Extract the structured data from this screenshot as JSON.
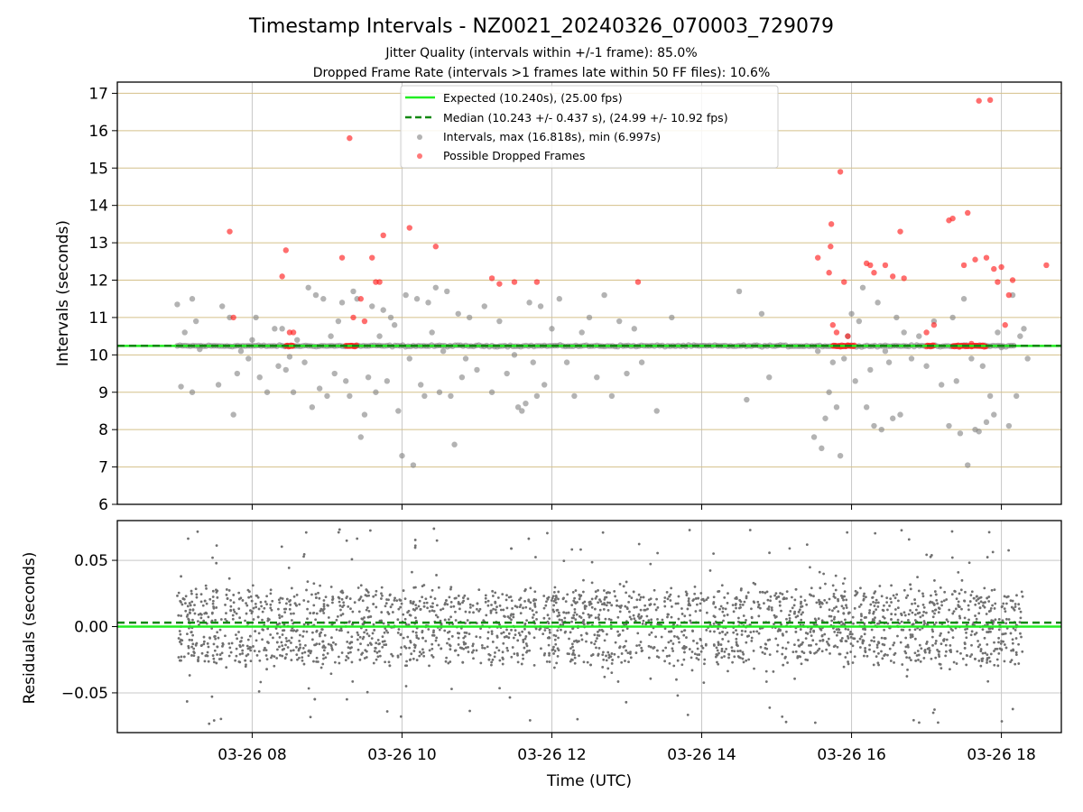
{
  "figure": {
    "title": "Timestamp Intervals - NZ0021_20240326_070003_729079",
    "subtitle_1": "Jitter Quality (intervals within +/-1 frame): 85.0%",
    "subtitle_2": "Dropped Frame Rate (intervals >1 frames late within 50 FF files): 10.6%"
  },
  "chart_data": [
    {
      "type": "scatter",
      "ylabel": "Intervals (seconds)",
      "ylim": [
        6,
        17.3
      ],
      "xlim_hours": [
        6.2,
        18.8
      ],
      "y_ticks": [
        "6",
        "7",
        "8",
        "9",
        "10",
        "11",
        "12",
        "13",
        "14",
        "15",
        "16",
        "17"
      ],
      "grid": "on",
      "legend_position": "top-center",
      "lines": {
        "expected": {
          "label": "Expected (10.240s), (25.00 fps)",
          "y": 10.24,
          "color": "#22ee22"
        },
        "median": {
          "label": "Median (10.243 +/- 0.437 s), (24.99 +/- 10.92 fps)",
          "y": 10.243,
          "color": "#118811"
        }
      },
      "series": [
        {
          "name": "Intervals, max (16.818s), min (6.997s)",
          "color": "#808080",
          "baseline_band": [
            7.0,
            18.2,
            10.24
          ],
          "points": [
            [
              7.0,
              11.35
            ],
            [
              7.05,
              9.15
            ],
            [
              7.1,
              10.6
            ],
            [
              7.2,
              11.5
            ],
            [
              7.2,
              9.0
            ],
            [
              7.25,
              10.9
            ],
            [
              7.3,
              10.15
            ],
            [
              7.55,
              9.2
            ],
            [
              7.6,
              11.3
            ],
            [
              7.7,
              11.0
            ],
            [
              7.75,
              8.4
            ],
            [
              7.8,
              9.5
            ],
            [
              7.85,
              10.1
            ],
            [
              7.95,
              9.9
            ],
            [
              8.0,
              10.4
            ],
            [
              8.05,
              11.0
            ],
            [
              8.1,
              9.4
            ],
            [
              8.2,
              9.0
            ],
            [
              8.3,
              10.7
            ],
            [
              8.35,
              9.7
            ],
            [
              8.4,
              10.7
            ],
            [
              8.45,
              9.6
            ],
            [
              8.5,
              9.95
            ],
            [
              8.55,
              9.0
            ],
            [
              8.6,
              10.4
            ],
            [
              8.7,
              9.8
            ],
            [
              8.75,
              11.8
            ],
            [
              8.8,
              8.6
            ],
            [
              8.85,
              11.6
            ],
            [
              8.9,
              9.1
            ],
            [
              8.95,
              11.5
            ],
            [
              9.0,
              8.9
            ],
            [
              9.05,
              10.5
            ],
            [
              9.1,
              9.5
            ],
            [
              9.15,
              10.9
            ],
            [
              9.2,
              11.4
            ],
            [
              9.25,
              9.3
            ],
            [
              9.3,
              8.9
            ],
            [
              9.35,
              11.7
            ],
            [
              9.4,
              11.5
            ],
            [
              9.45,
              7.8
            ],
            [
              9.5,
              8.4
            ],
            [
              9.55,
              9.4
            ],
            [
              9.6,
              11.3
            ],
            [
              9.65,
              9.0
            ],
            [
              9.7,
              10.5
            ],
            [
              9.75,
              11.2
            ],
            [
              9.8,
              9.3
            ],
            [
              9.85,
              11.0
            ],
            [
              9.9,
              10.8
            ],
            [
              9.95,
              8.5
            ],
            [
              10.0,
              7.3
            ],
            [
              10.05,
              11.6
            ],
            [
              10.1,
              9.9
            ],
            [
              10.15,
              7.05
            ],
            [
              10.2,
              11.5
            ],
            [
              10.25,
              9.2
            ],
            [
              10.3,
              8.9
            ],
            [
              10.35,
              11.4
            ],
            [
              10.4,
              10.6
            ],
            [
              10.45,
              11.8
            ],
            [
              10.5,
              9.0
            ],
            [
              10.55,
              10.1
            ],
            [
              10.6,
              11.7
            ],
            [
              10.65,
              8.9
            ],
            [
              10.7,
              7.6
            ],
            [
              10.75,
              11.1
            ],
            [
              10.8,
              9.4
            ],
            [
              10.85,
              9.9
            ],
            [
              10.9,
              11.0
            ],
            [
              11.0,
              9.6
            ],
            [
              11.1,
              11.3
            ],
            [
              11.2,
              9.0
            ],
            [
              11.3,
              10.9
            ],
            [
              11.4,
              9.5
            ],
            [
              11.5,
              10.0
            ],
            [
              11.55,
              8.6
            ],
            [
              11.6,
              8.5
            ],
            [
              11.65,
              8.7
            ],
            [
              11.7,
              11.4
            ],
            [
              11.75,
              9.8
            ],
            [
              11.8,
              8.9
            ],
            [
              11.85,
              11.3
            ],
            [
              11.9,
              9.2
            ],
            [
              12.0,
              10.7
            ],
            [
              12.1,
              11.5
            ],
            [
              12.2,
              9.8
            ],
            [
              12.3,
              8.9
            ],
            [
              12.4,
              10.6
            ],
            [
              12.5,
              11.0
            ],
            [
              12.6,
              9.4
            ],
            [
              12.7,
              11.6
            ],
            [
              12.8,
              8.9
            ],
            [
              12.9,
              10.9
            ],
            [
              13.0,
              9.5
            ],
            [
              13.1,
              10.7
            ],
            [
              13.2,
              9.8
            ],
            [
              13.4,
              8.5
            ],
            [
              13.6,
              11.0
            ],
            [
              14.5,
              11.7
            ],
            [
              14.6,
              8.8
            ],
            [
              14.8,
              11.1
            ],
            [
              14.9,
              9.4
            ],
            [
              15.5,
              7.8
            ],
            [
              15.55,
              10.1
            ],
            [
              15.6,
              7.5
            ],
            [
              15.65,
              8.3
            ],
            [
              15.7,
              9.0
            ],
            [
              15.75,
              9.8
            ],
            [
              15.8,
              8.6
            ],
            [
              15.85,
              7.3
            ],
            [
              15.9,
              9.9
            ],
            [
              15.95,
              10.5
            ],
            [
              16.0,
              11.1
            ],
            [
              16.05,
              9.3
            ],
            [
              16.1,
              10.9
            ],
            [
              16.15,
              11.8
            ],
            [
              16.2,
              8.6
            ],
            [
              16.25,
              9.6
            ],
            [
              16.3,
              8.1
            ],
            [
              16.35,
              11.4
            ],
            [
              16.4,
              8.0
            ],
            [
              16.45,
              10.1
            ],
            [
              16.5,
              9.8
            ],
            [
              16.55,
              8.3
            ],
            [
              16.6,
              11.0
            ],
            [
              16.65,
              8.4
            ],
            [
              16.7,
              10.6
            ],
            [
              16.8,
              9.9
            ],
            [
              16.9,
              10.5
            ],
            [
              17.0,
              9.7
            ],
            [
              17.1,
              10.9
            ],
            [
              17.2,
              9.2
            ],
            [
              17.3,
              8.1
            ],
            [
              17.35,
              11.0
            ],
            [
              17.4,
              9.3
            ],
            [
              17.45,
              7.9
            ],
            [
              17.5,
              11.5
            ],
            [
              17.55,
              7.05
            ],
            [
              17.6,
              9.9
            ],
            [
              17.65,
              8.0
            ],
            [
              17.7,
              7.95
            ],
            [
              17.75,
              9.7
            ],
            [
              17.8,
              8.2
            ],
            [
              17.85,
              8.9
            ],
            [
              17.9,
              8.4
            ],
            [
              17.95,
              10.6
            ],
            [
              18.0,
              10.2
            ],
            [
              18.1,
              8.1
            ],
            [
              18.15,
              11.6
            ],
            [
              18.2,
              8.9
            ],
            [
              18.25,
              10.5
            ],
            [
              18.3,
              10.7
            ],
            [
              18.35,
              9.9
            ]
          ]
        },
        {
          "name": "Possible Dropped Frames",
          "color": "#ff2020",
          "clusters": [
            [
              8.45,
              8.55,
              10.24
            ],
            [
              9.25,
              9.4,
              10.24
            ],
            [
              15.75,
              16.05,
              10.24
            ],
            [
              17.0,
              17.1,
              10.24
            ],
            [
              17.35,
              17.8,
              10.24
            ]
          ],
          "points": [
            [
              7.7,
              13.3
            ],
            [
              7.75,
              11.0
            ],
            [
              8.4,
              12.1
            ],
            [
              8.45,
              12.8
            ],
            [
              8.5,
              10.6
            ],
            [
              8.55,
              10.6
            ],
            [
              9.2,
              12.6
            ],
            [
              9.3,
              15.8
            ],
            [
              9.35,
              11.0
            ],
            [
              9.45,
              11.5
            ],
            [
              9.5,
              10.9
            ],
            [
              9.6,
              12.6
            ],
            [
              9.65,
              11.95
            ],
            [
              9.7,
              11.95
            ],
            [
              9.75,
              13.2
            ],
            [
              10.1,
              13.4
            ],
            [
              10.45,
              12.9
            ],
            [
              11.2,
              12.05
            ],
            [
              11.3,
              11.9
            ],
            [
              11.5,
              11.95
            ],
            [
              11.8,
              11.95
            ],
            [
              13.15,
              11.95
            ],
            [
              15.55,
              12.6
            ],
            [
              15.7,
              12.2
            ],
            [
              15.72,
              12.9
            ],
            [
              15.73,
              13.5
            ],
            [
              15.75,
              10.8
            ],
            [
              15.8,
              10.6
            ],
            [
              15.85,
              14.9
            ],
            [
              15.9,
              11.95
            ],
            [
              15.95,
              10.5
            ],
            [
              16.2,
              12.45
            ],
            [
              16.25,
              12.4
            ],
            [
              16.3,
              12.2
            ],
            [
              16.45,
              12.4
            ],
            [
              16.55,
              12.1
            ],
            [
              16.65,
              13.3
            ],
            [
              16.7,
              12.05
            ],
            [
              17.0,
              10.6
            ],
            [
              17.1,
              10.8
            ],
            [
              17.3,
              13.6
            ],
            [
              17.35,
              13.65
            ],
            [
              17.5,
              12.4
            ],
            [
              17.55,
              13.8
            ],
            [
              17.6,
              10.3
            ],
            [
              17.65,
              12.55
            ],
            [
              17.7,
              16.8
            ],
            [
              17.8,
              12.6
            ],
            [
              17.85,
              16.82
            ],
            [
              17.9,
              12.3
            ],
            [
              17.95,
              11.95
            ],
            [
              18.0,
              12.35
            ],
            [
              18.05,
              10.8
            ],
            [
              18.1,
              11.6
            ],
            [
              18.15,
              12.0
            ],
            [
              18.6,
              12.4
            ]
          ]
        }
      ]
    },
    {
      "type": "scatter",
      "xlabel": "Time (UTC)",
      "ylabel": "Residuals (seconds)",
      "ylim": [
        -0.08,
        0.08
      ],
      "xlim_hours": [
        6.2,
        18.8
      ],
      "y_ticks": [
        "0.05",
        "0.00",
        "−0.05"
      ],
      "x_ticks": [
        "03-26 08",
        "03-26 10",
        "03-26 12",
        "03-26 14",
        "03-26 16",
        "03-26 18"
      ],
      "x_tick_hours": [
        8,
        10,
        12,
        14,
        16,
        18
      ],
      "grid": "on",
      "lines": {
        "zero": {
          "y": 0.0,
          "color": "#22ee22"
        },
        "median": {
          "y": 0.003,
          "color": "#118811"
        }
      },
      "series": [
        {
          "name": "",
          "color": "#707070",
          "point_count": 2600,
          "x_range": [
            7.0,
            18.3
          ],
          "bands": [
            0.018,
            0.0,
            -0.018
          ],
          "spread": 0.035
        }
      ]
    }
  ],
  "legend": {
    "expected": "Expected (10.240s), (25.00 fps)",
    "median": "Median (10.243 +/- 0.437 s), (24.99 +/- 10.92 fps)",
    "intervals": "Intervals, max (16.818s), min (6.997s)",
    "dropped": "Possible Dropped Frames"
  }
}
